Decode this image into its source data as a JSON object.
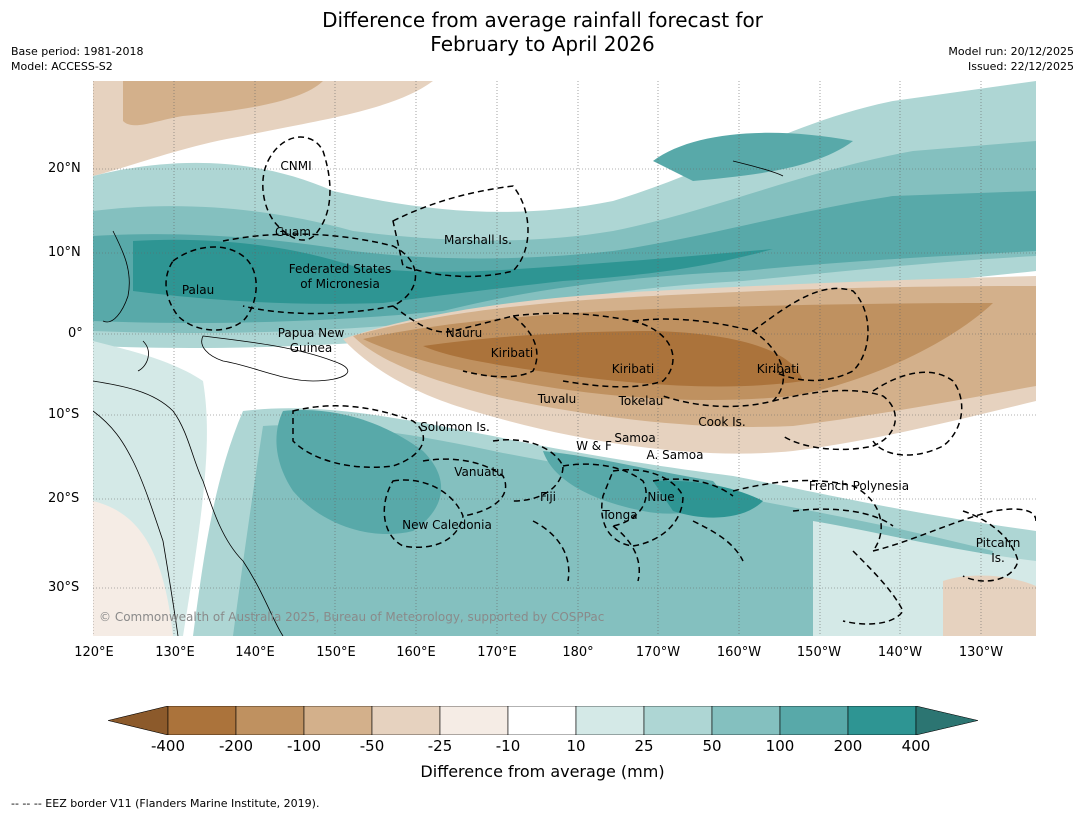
{
  "title_line1": "Difference from average rainfall forecast for",
  "title_line2": "February to April 2026",
  "base_period": "Base period: 1981-2018",
  "model": "Model: ACCESS-S2",
  "model_run": "Model run: 20/12/2025",
  "issued": "Issued: 22/12/2025",
  "lat_labels": [
    "20°N",
    "10°N",
    "0°",
    "10°S",
    "20°S",
    "30°S"
  ],
  "lon_labels": [
    "120°E",
    "130°E",
    "140°E",
    "150°E",
    "160°E",
    "170°E",
    "180°",
    "170°W",
    "160°W",
    "150°W",
    "140°W",
    "130°W"
  ],
  "regions": [
    "CNMI",
    "Guam",
    "Marshall Is.",
    "Federated States",
    "of Micronesia",
    "Palau",
    "Papua New",
    "Guinea",
    "Nauru",
    "Kiribati",
    "Kiribati",
    "Kiribati",
    "Tuvalu",
    "Tokelau",
    "Cook Is.",
    "Solomon Is.",
    "Samoa",
    "W & F",
    "A. Samoa",
    "Vanuatu",
    "Fiji",
    "Niue",
    "French Polynesia",
    "Tonga",
    "New Caledonia",
    "Pitcairn",
    "Is."
  ],
  "copyright": "© Commonwealth of Australia 2025, Bureau of Meteorology, supported by COSPPac",
  "colorbar": {
    "labels": [
      "-400",
      "-200",
      "-100",
      "-50",
      "-25",
      "-10",
      "10",
      "25",
      "50",
      "100",
      "200",
      "400"
    ],
    "colors": [
      "#8c5a2b",
      "#ab733b",
      "#bf9160",
      "#d3b08b",
      "#e6d2bf",
      "#f5ece5",
      "#ffffff",
      "#d4e9e7",
      "#aed6d4",
      "#84c0bf",
      "#58a9a9",
      "#2e9593",
      "#2c7572"
    ],
    "title": "Difference from average (mm)"
  },
  "footnote": "--  --  -- EEZ border V11 (Flanders Marine Institute, 2019)."
}
